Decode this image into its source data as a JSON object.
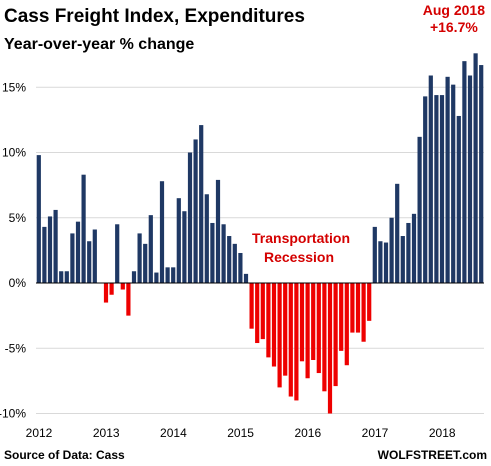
{
  "header": {
    "title": "Cass Freight Index, Expenditures",
    "subtitle": "Year-over-year % change"
  },
  "footer": {
    "source": "Source of Data: Cass",
    "credit": "WOLFSTREET.com"
  },
  "annotations": {
    "latest_line1": "Aug 2018",
    "latest_line2": "+16.7%",
    "recession_line1": "Transportation",
    "recession_line2": "Recession"
  },
  "colors": {
    "positive": "#1f3864",
    "negative": "#ee0000",
    "annotation": "#d40000",
    "grid": "#d9d9d9"
  },
  "chart_data": {
    "type": "bar",
    "title": "Cass Freight Index, Expenditures",
    "subtitle": "Year-over-year % change",
    "xlabel": "",
    "ylabel": "",
    "x_tick_labels": [
      "2012",
      "2013",
      "2014",
      "2015",
      "2016",
      "2017",
      "2018"
    ],
    "y_tick_labels": [
      "15%",
      "10%",
      "5%",
      "0%",
      "-5%",
      "-10%"
    ],
    "y_ticks": [
      15,
      10,
      5,
      0,
      -5,
      -10
    ],
    "ylim": [
      -10,
      18
    ],
    "grid": true,
    "legend": "none",
    "start": "2012-01",
    "frequency": "monthly",
    "categories": [
      "2012-01",
      "2012-02",
      "2012-03",
      "2012-04",
      "2012-05",
      "2012-06",
      "2012-07",
      "2012-08",
      "2012-09",
      "2012-10",
      "2012-11",
      "2012-12",
      "2013-01",
      "2013-02",
      "2013-03",
      "2013-04",
      "2013-05",
      "2013-06",
      "2013-07",
      "2013-08",
      "2013-09",
      "2013-10",
      "2013-11",
      "2013-12",
      "2014-01",
      "2014-02",
      "2014-03",
      "2014-04",
      "2014-05",
      "2014-06",
      "2014-07",
      "2014-08",
      "2014-09",
      "2014-10",
      "2014-11",
      "2014-12",
      "2015-01",
      "2015-02",
      "2015-03",
      "2015-04",
      "2015-05",
      "2015-06",
      "2015-07",
      "2015-08",
      "2015-09",
      "2015-10",
      "2015-11",
      "2015-12",
      "2016-01",
      "2016-02",
      "2016-03",
      "2016-04",
      "2016-05",
      "2016-06",
      "2016-07",
      "2016-08",
      "2016-09",
      "2016-10",
      "2016-11",
      "2016-12",
      "2017-01",
      "2017-02",
      "2017-03",
      "2017-04",
      "2017-05",
      "2017-06",
      "2017-07",
      "2017-08",
      "2017-09",
      "2017-10",
      "2017-11",
      "2017-12",
      "2018-01",
      "2018-02",
      "2018-03",
      "2018-04",
      "2018-05",
      "2018-06",
      "2018-07",
      "2018-08"
    ],
    "values": [
      9.8,
      4.3,
      5.1,
      5.6,
      0.9,
      0.9,
      3.8,
      4.7,
      8.3,
      3.2,
      4.1,
      0.0,
      -1.5,
      -0.9,
      4.5,
      -0.5,
      -2.5,
      0.9,
      3.8,
      3.0,
      5.2,
      0.8,
      7.8,
      1.2,
      1.2,
      6.5,
      5.5,
      10.0,
      11.0,
      12.1,
      6.8,
      4.6,
      7.9,
      4.5,
      3.6,
      3.0,
      2.3,
      0.7,
      -3.5,
      -4.6,
      -4.3,
      -5.7,
      -6.4,
      -8.0,
      -7.1,
      -8.7,
      -9.0,
      -6.0,
      -7.3,
      -5.9,
      -6.9,
      -8.3,
      -10.0,
      -7.9,
      -5.2,
      -6.3,
      -3.8,
      -3.8,
      -4.5,
      -2.9,
      4.3,
      3.2,
      3.1,
      5.0,
      7.6,
      3.6,
      4.6,
      5.3,
      11.2,
      14.3,
      15.9,
      14.4,
      14.4,
      15.8,
      15.2,
      12.8,
      17.0,
      15.9,
      17.6,
      16.7
    ]
  }
}
